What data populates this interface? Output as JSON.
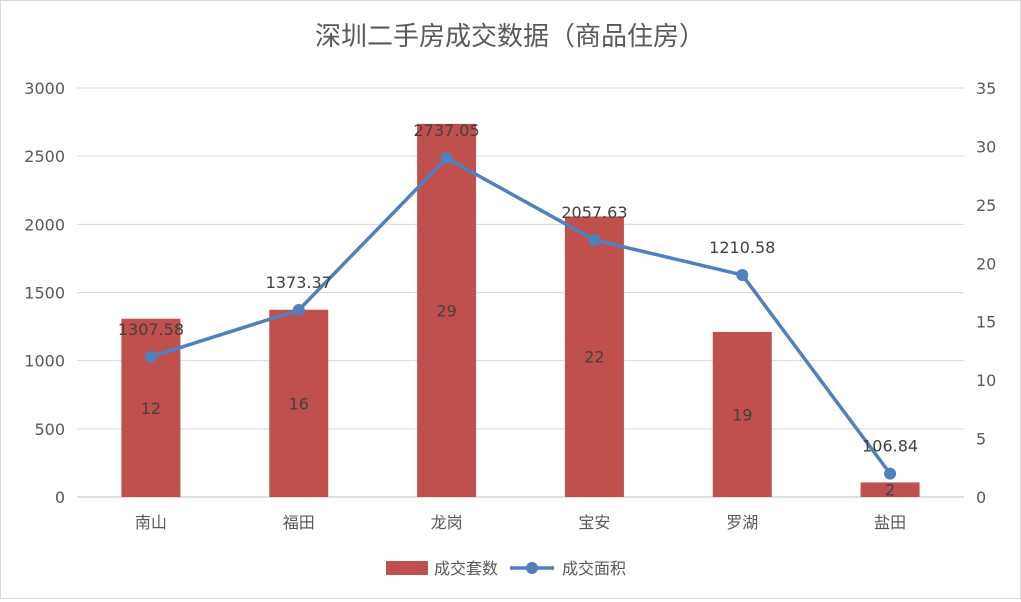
{
  "chart_data": {
    "type": "bar",
    "title": "深圳二手房成交数据（商品住房）",
    "categories": [
      "南山",
      "福田",
      "龙岗",
      "宝安",
      "罗湖",
      "盐田"
    ],
    "series": [
      {
        "name": "成交套数",
        "type": "bar",
        "axis": "left",
        "values": [
          1307.58,
          1373.37,
          2737.05,
          2057.63,
          1210.58,
          106.84
        ],
        "labels": [
          "1307.58",
          "1373.37",
          "2737.05",
          "2057.63",
          "1210.58",
          "106.84"
        ],
        "color": "#C0504D"
      },
      {
        "name": "成交面积",
        "type": "line",
        "axis": "right",
        "values": [
          12,
          16,
          29,
          22,
          19,
          2
        ],
        "labels": [
          "12",
          "16",
          "29",
          "22",
          "19",
          "2"
        ],
        "color": "#4F81BD"
      }
    ],
    "y_left": {
      "min": 0,
      "max": 3000,
      "ticks": [
        "0",
        "500",
        "1000",
        "1500",
        "2000",
        "2500",
        "3000"
      ]
    },
    "y_right": {
      "min": 0,
      "max": 35,
      "ticks": [
        "0",
        "5",
        "10",
        "15",
        "20",
        "25",
        "30",
        "35"
      ]
    },
    "grid": true,
    "legend_position": "bottom"
  }
}
